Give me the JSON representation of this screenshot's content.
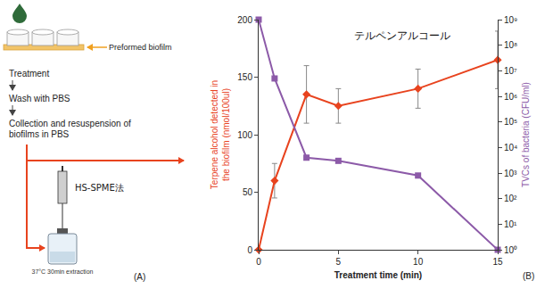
{
  "diagram": {
    "label": "(A)",
    "preformed": "Preformed biofilm",
    "steps": [
      "Treatment",
      "Wash with PBS",
      "Collection and resuspension of biofilms in PBS"
    ],
    "method": "HS-SPME法",
    "vial_text": "37°C 30min extraction"
  },
  "chart_label": "(B)",
  "chart_data": {
    "type": "line",
    "annotation": "テルペンアルコール",
    "x_label": "Treatment time (min)",
    "y_label": "Terpene alcohol detected in the biofilm (nmol/100ul)",
    "y2_label": "TVCs of bacteria (CFU/ml)",
    "x": [
      0,
      1,
      3,
      5,
      10,
      15
    ],
    "series": [
      {
        "color": "#e8431e",
        "marker": "diamond",
        "values": [
          0,
          60,
          135,
          125,
          140,
          165
        ],
        "error": [
          0,
          15,
          25,
          15,
          17,
          25
        ]
      },
      {
        "color": "#8c5aa8",
        "marker": "square",
        "axis": "y2",
        "values": [
          1000000000,
          5000000,
          4000,
          3000,
          800,
          1
        ]
      }
    ],
    "xlim": [
      0,
      15
    ],
    "xticks": [
      0,
      5,
      10,
      15
    ],
    "ylim": [
      0,
      200
    ],
    "yticks": [
      0,
      50,
      100,
      150,
      200
    ],
    "y2lim": [
      1,
      1000000000
    ],
    "y2ticks": [
      {
        "value": 1,
        "label": "10⁰"
      },
      {
        "value": 10,
        "label": "10¹"
      },
      {
        "value": 100,
        "label": "10²"
      },
      {
        "value": 1000,
        "label": "10³"
      },
      {
        "value": 10000,
        "label": "10⁴"
      },
      {
        "value": 100000,
        "label": "10⁵"
      },
      {
        "value": 1000000,
        "label": "10⁶"
      },
      {
        "value": 10000000,
        "label": "10⁷"
      },
      {
        "value": 100000000,
        "label": "10⁸"
      },
      {
        "value": 1000000000,
        "label": "10⁹"
      }
    ],
    "log": "y2",
    "grid": false
  }
}
